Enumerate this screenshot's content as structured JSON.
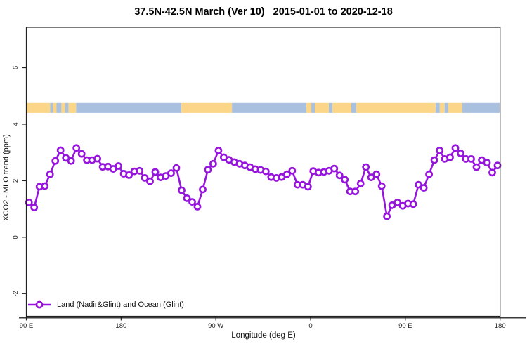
{
  "header": {
    "title": "37.5N-42.5N March (Ver 10)   2015-01-01 to 2020-12-18"
  },
  "axes": {
    "x_title": "Longitude (deg E)",
    "y_title": "XCO2 - MLO trend (ppm)",
    "x_domain": [
      90,
      540
    ],
    "y_domain": [
      -2.8,
      7.43
    ],
    "x_ticks": [
      {
        "lon": 90,
        "label": "90 E"
      },
      {
        "lon": 180,
        "label": "180"
      },
      {
        "lon": 270,
        "label": "90 W"
      },
      {
        "lon": 360,
        "label": "0"
      },
      {
        "lon": 450,
        "label": "90 E"
      },
      {
        "lon": 540,
        "label": "180"
      }
    ],
    "y_ticks": [
      {
        "v": -2,
        "label": "-2"
      },
      {
        "v": 0,
        "label": "0"
      },
      {
        "v": 2,
        "label": "2"
      },
      {
        "v": 4,
        "label": "4"
      },
      {
        "v": 6,
        "label": "6"
      }
    ]
  },
  "legend": {
    "label": "Land (Nadir&Glint) and Ocean (Glint)"
  },
  "colors": {
    "series": "#9614DC",
    "land": "#FBD688",
    "ocean": "#A9C0DF",
    "axis": "#222222",
    "rule": "#3C3C3C",
    "tick_text": "#222222"
  },
  "land_ocean_band": {
    "value_range": [
      4.4,
      4.75
    ],
    "segments": [
      [
        90,
        112.7,
        "land"
      ],
      [
        112.7,
        115.3,
        "ocean"
      ],
      [
        115.3,
        118.7,
        "land"
      ],
      [
        118.7,
        123.3,
        "ocean"
      ],
      [
        123.3,
        126.7,
        "land"
      ],
      [
        126.7,
        130,
        "ocean"
      ],
      [
        130,
        137.3,
        "land"
      ],
      [
        137.3,
        237.3,
        "ocean"
      ],
      [
        237.3,
        285.3,
        "land"
      ],
      [
        285.3,
        356,
        "ocean"
      ],
      [
        356,
        360.7,
        "land"
      ],
      [
        360.7,
        364,
        "ocean"
      ],
      [
        364,
        377.3,
        "land"
      ],
      [
        377.3,
        380.7,
        "ocean"
      ],
      [
        380.7,
        398.7,
        "land"
      ],
      [
        398.7,
        403.3,
        "ocean"
      ],
      [
        403.3,
        478.7,
        "land"
      ],
      [
        478.7,
        482.7,
        "ocean"
      ],
      [
        482.7,
        487.3,
        "land"
      ],
      [
        487.3,
        490.7,
        "ocean"
      ],
      [
        490.7,
        504,
        "land"
      ],
      [
        504,
        540,
        "ocean"
      ]
    ]
  },
  "chart_data": {
    "type": "line",
    "title": "37.5N-42.5N March (Ver 10)   2015-01-01 to 2020-12-18",
    "xlabel": "Longitude (deg E)",
    "ylabel": "XCO2 - MLO trend (ppm)",
    "xlim": [
      90,
      540
    ],
    "ylim": [
      -2.8,
      7.4
    ],
    "x_tick_labels": [
      "90 E",
      "180",
      "90 W",
      "0",
      "90 E",
      "180"
    ],
    "legend_position": "bottom-left",
    "grid": false,
    "marker": "open-circle",
    "annotations": [
      "horizontal land/ocean mask strip centered near y=4.6"
    ],
    "series": [
      {
        "name": "Land (Nadir&Glint) and Ocean (Glint)",
        "x": [
          92.5,
          97.5,
          102.5,
          107.5,
          112.5,
          117.5,
          122.5,
          127.5,
          132.5,
          137.5,
          142.5,
          147.5,
          152.5,
          157.5,
          162.5,
          167.5,
          172.5,
          177.5,
          182.5,
          187.5,
          192.5,
          197.5,
          202.5,
          207.5,
          212.5,
          217.5,
          222.5,
          227.5,
          232.5,
          237.5,
          242.5,
          247.5,
          252.5,
          257.5,
          262.5,
          267.5,
          272.5,
          277.5,
          282.5,
          287.5,
          292.5,
          297.5,
          302.5,
          307.5,
          312.5,
          317.5,
          322.5,
          327.5,
          332.5,
          337.5,
          342.5,
          347.5,
          352.5,
          357.5,
          362.5,
          367.5,
          372.5,
          377.5,
          382.5,
          387.5,
          392.5,
          397.5,
          402.5,
          407.5,
          412.5,
          417.5,
          422.5,
          427.5,
          432.5,
          437.5,
          442.5,
          447.5,
          452.5,
          457.5,
          462.5,
          467.5,
          472.5,
          477.5,
          482.5,
          487.5,
          492.5,
          497.5,
          502.5,
          507.5,
          512.5,
          517.5,
          522.5,
          527.5,
          532.5,
          537.5
        ],
        "y": [
          1.23,
          1.05,
          1.79,
          1.81,
          2.23,
          2.7,
          3.08,
          2.81,
          2.7,
          3.16,
          2.95,
          2.73,
          2.73,
          2.78,
          2.49,
          2.5,
          2.42,
          2.52,
          2.25,
          2.2,
          2.33,
          2.35,
          2.1,
          1.98,
          2.31,
          2.12,
          2.17,
          2.27,
          2.45,
          1.66,
          1.38,
          1.25,
          1.08,
          1.69,
          2.39,
          2.6,
          3.07,
          2.83,
          2.74,
          2.66,
          2.6,
          2.54,
          2.48,
          2.41,
          2.38,
          2.33,
          2.13,
          2.1,
          2.13,
          2.23,
          2.35,
          1.86,
          1.86,
          1.79,
          2.34,
          2.29,
          2.31,
          2.35,
          2.43,
          2.19,
          2.04,
          1.62,
          1.62,
          1.9,
          2.48,
          2.12,
          2.23,
          1.81,
          0.74,
          1.13,
          1.23,
          1.11,
          1.19,
          1.17,
          1.86,
          1.75,
          2.23,
          2.73,
          3.07,
          2.77,
          2.83,
          3.16,
          2.97,
          2.77,
          2.77,
          2.48,
          2.73,
          2.64,
          2.29,
          2.54
        ]
      }
    ]
  }
}
